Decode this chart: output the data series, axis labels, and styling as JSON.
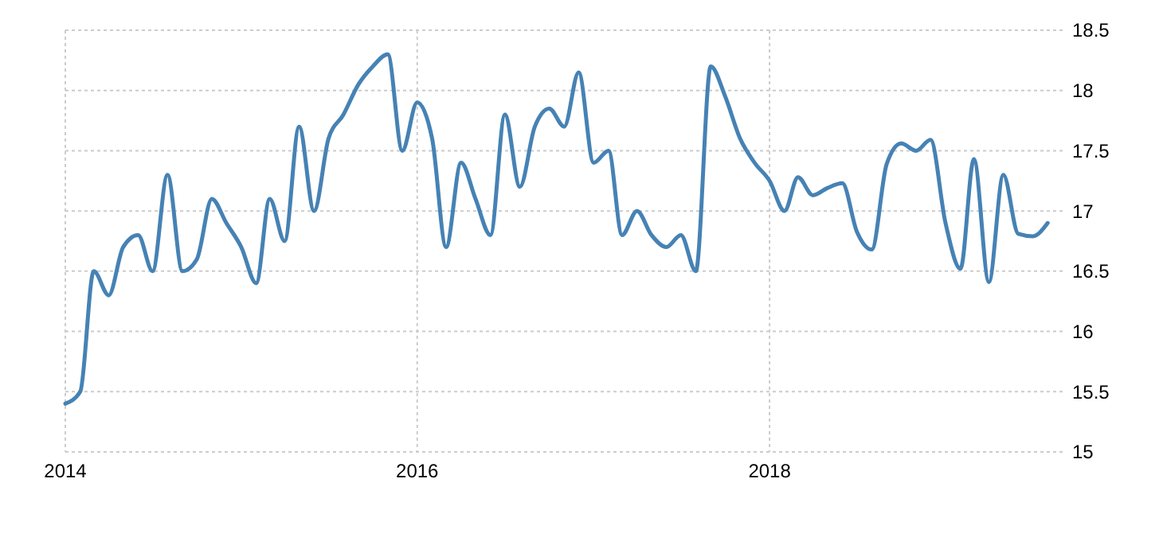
{
  "chart_data": {
    "type": "line",
    "x": [
      "2014-01",
      "2014-02",
      "2014-03",
      "2014-04",
      "2014-05",
      "2014-06",
      "2014-07",
      "2014-08",
      "2014-09",
      "2014-10",
      "2014-11",
      "2014-12",
      "2015-01",
      "2015-02",
      "2015-03",
      "2015-04",
      "2015-05",
      "2015-06",
      "2015-07",
      "2015-08",
      "2015-09",
      "2015-10",
      "2015-11",
      "2015-12",
      "2016-01",
      "2016-02",
      "2016-03",
      "2016-04",
      "2016-05",
      "2016-06",
      "2016-07",
      "2016-08",
      "2016-09",
      "2016-10",
      "2016-11",
      "2016-12",
      "2017-01",
      "2017-02",
      "2017-03",
      "2017-04",
      "2017-05",
      "2017-06",
      "2017-07",
      "2017-08",
      "2017-09",
      "2017-10",
      "2017-11",
      "2017-12",
      "2018-01",
      "2018-02",
      "2018-03",
      "2018-04",
      "2018-05",
      "2018-06",
      "2018-07",
      "2018-08",
      "2018-09",
      "2018-10",
      "2018-11",
      "2018-12",
      "2019-01",
      "2019-02",
      "2019-03",
      "2019-04",
      "2019-05",
      "2019-06",
      "2019-07",
      "2019-08"
    ],
    "series": [
      {
        "color": "#4682b4",
        "values": [
          15.4,
          15.5,
          16.5,
          16.3,
          16.7,
          16.8,
          16.5,
          17.3,
          16.5,
          16.6,
          17.1,
          16.9,
          16.7,
          16.4,
          17.1,
          16.75,
          17.7,
          17.0,
          17.6,
          17.8,
          18.05,
          18.2,
          18.3,
          17.5,
          17.9,
          17.6,
          16.7,
          17.4,
          17.1,
          16.8,
          17.8,
          17.2,
          17.7,
          17.85,
          17.7,
          18.15,
          17.4,
          17.5,
          16.8,
          17.0,
          16.8,
          16.7,
          16.8,
          16.5,
          18.2,
          17.95,
          17.6,
          17.4,
          17.25,
          17.0,
          17.28,
          17.13,
          17.19,
          17.23,
          16.83,
          16.68,
          17.39,
          17.56,
          17.5,
          17.59,
          16.9,
          16.52,
          17.43,
          16.41,
          17.3,
          16.81,
          16.79,
          16.9
        ]
      }
    ],
    "xlim": [
      "2014-01",
      "2019-09"
    ],
    "xticks": [
      "2014",
      "2016",
      "2018"
    ],
    "ylim": [
      15,
      18.5
    ],
    "yticks": [
      15,
      15.5,
      16,
      16.5,
      17,
      17.5,
      18,
      18.5
    ],
    "grid": true,
    "marker": "none",
    "line_style": "solid"
  }
}
